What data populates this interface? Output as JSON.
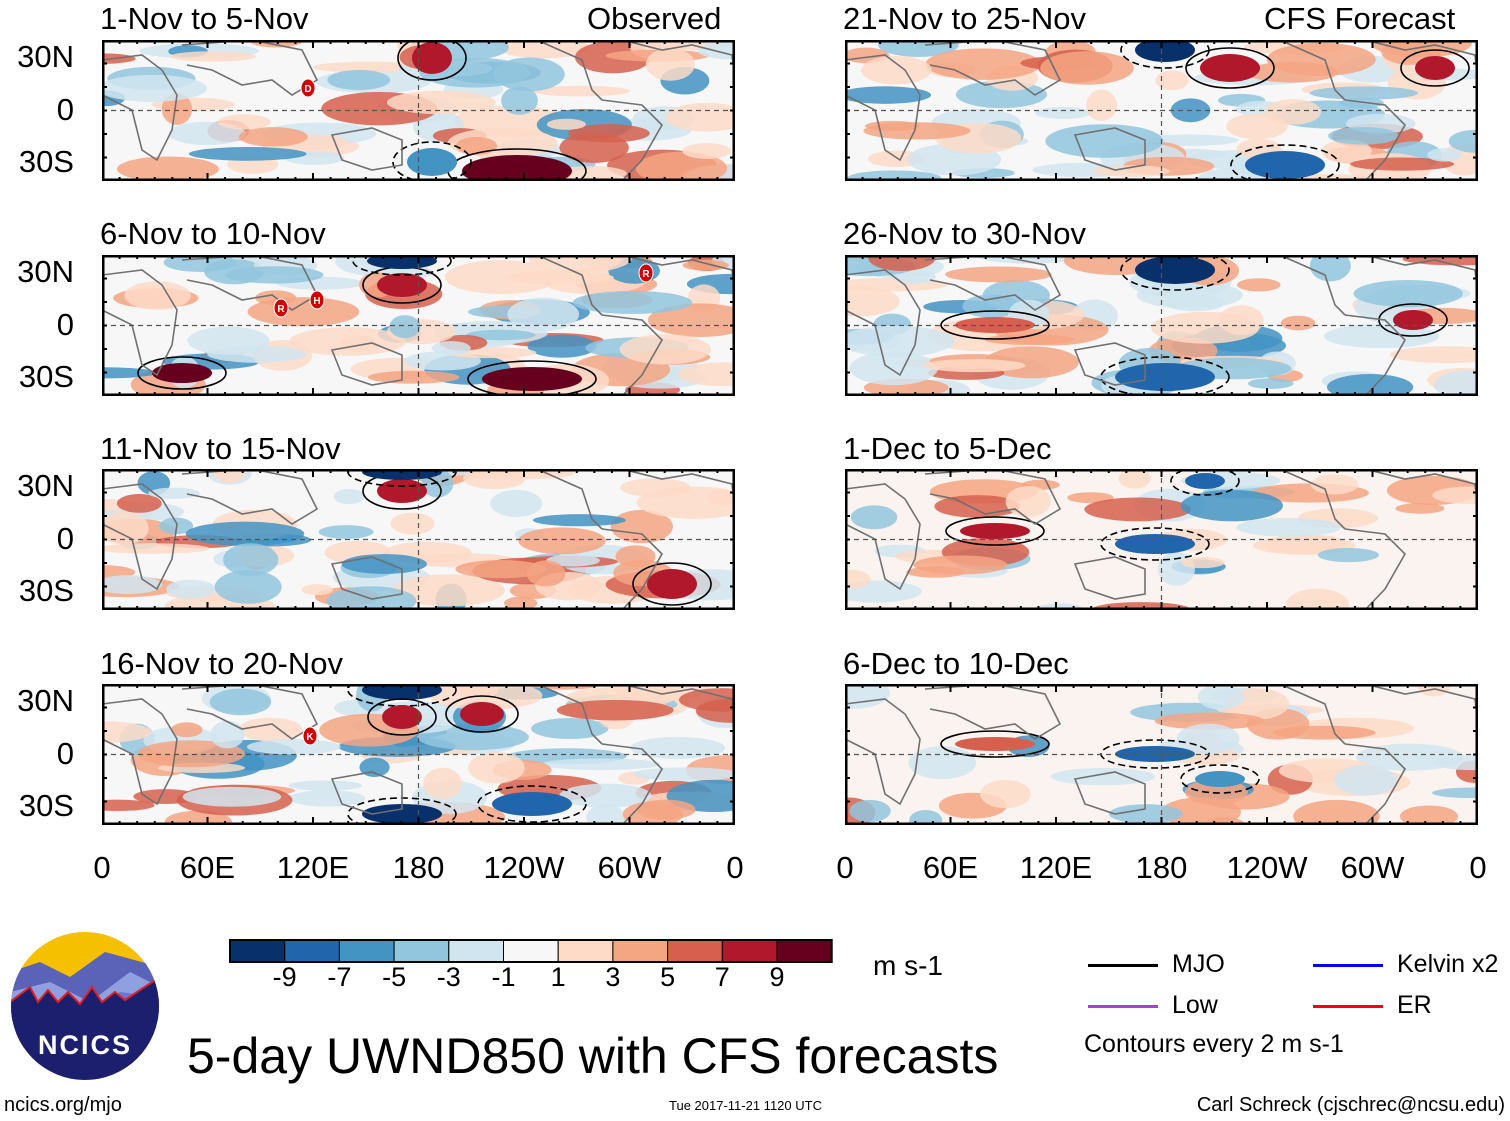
{
  "chart_data": {
    "type": "heatmap",
    "title": "5-day UWND850 with CFS forecasts",
    "variable": "850-hPa zonal wind anomaly",
    "units": "m s-1",
    "left_column_label": "Observed",
    "right_column_label": "CFS Forecast",
    "panels_observed": [
      "1-Nov to 5-Nov",
      "6-Nov to 10-Nov",
      "11-Nov to 15-Nov",
      "16-Nov to 20-Nov"
    ],
    "panels_forecast": [
      "21-Nov to 25-Nov",
      "26-Nov to 30-Nov",
      "1-Dec to 5-Dec",
      "6-Dec to 10-Dec"
    ],
    "y_ticks": [
      "30N",
      "0",
      "30S"
    ],
    "x_ticks": [
      "0",
      "60E",
      "120E",
      "180",
      "120W",
      "60W",
      "0"
    ],
    "colorbar": {
      "labels": [
        "-9",
        "-7",
        "-5",
        "-3",
        "-1",
        "1",
        "3",
        "5",
        "7",
        "9"
      ],
      "colors": [
        "#08306b",
        "#2166ac",
        "#4393c3",
        "#92c5de",
        "#d1e5f0",
        "#f7f7f7",
        "#fddbc7",
        "#f4a582",
        "#d6604d",
        "#b2182b",
        "#67001f"
      ],
      "units": "m s-1"
    },
    "legend": [
      {
        "label": "MJO",
        "color": "#000000"
      },
      {
        "label": "Kelvin x2",
        "color": "#0000ff"
      },
      {
        "label": "Low",
        "color": "#a040e0"
      },
      {
        "label": "ER",
        "color": "#ff0000"
      }
    ],
    "contour_note": "Contours every 2 m s-1",
    "storm_labels": [
      "D",
      "R",
      "H",
      "R",
      "K"
    ]
  },
  "footer": {
    "logo_text": "NCICS",
    "url": "ncics.org/mjo",
    "timestamp": "Tue 2017-11-21 1120 UTC",
    "author": "Carl Schreck (cjschrec@ncsu.edu)"
  }
}
